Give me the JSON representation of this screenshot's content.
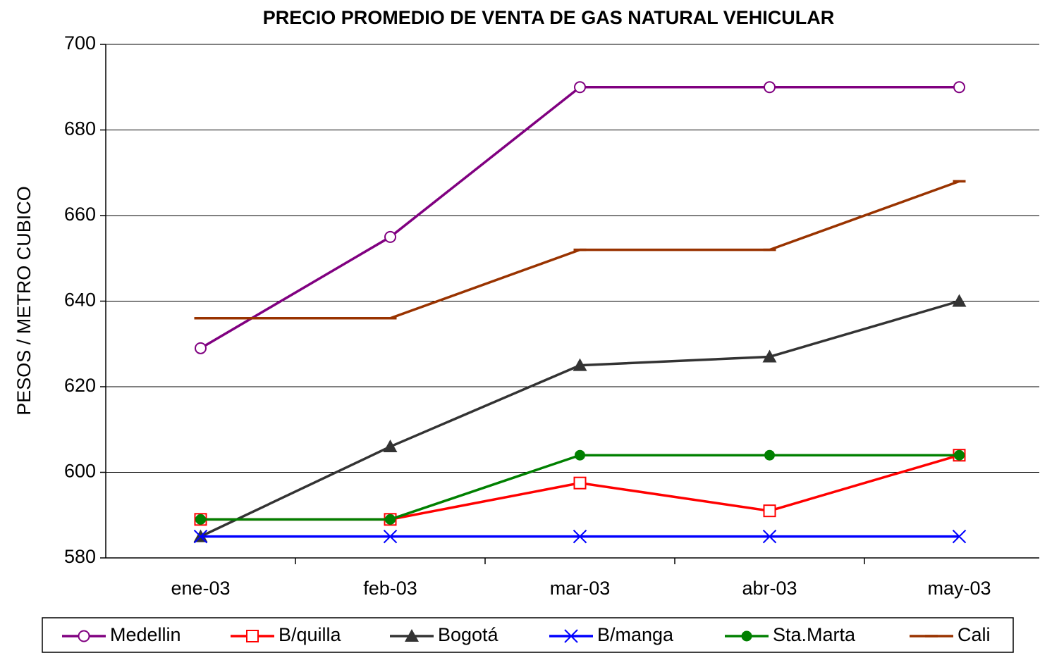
{
  "chart_data": {
    "type": "line",
    "title": "PRECIO PROMEDIO DE VENTA DE GAS NATURAL VEHICULAR",
    "y_label": "PESOS / METRO CUBICO",
    "categories": [
      "ene-03",
      "feb-03",
      "mar-03",
      "abr-03",
      "may-03"
    ],
    "ylim": [
      580,
      700
    ],
    "yticks": [
      580,
      600,
      620,
      640,
      660,
      680,
      700
    ],
    "grid": true,
    "series": [
      {
        "name": "Medellin",
        "color": "#800080",
        "marker": "open-circle",
        "values": [
          629,
          655,
          690,
          690,
          690
        ]
      },
      {
        "name": "B/quilla",
        "color": "#ff0000",
        "marker": "open-square",
        "values": [
          589,
          589,
          597.5,
          591,
          604
        ]
      },
      {
        "name": "Bogotá",
        "color": "#333333",
        "marker": "triangle",
        "values": [
          585,
          606,
          625,
          627,
          640
        ]
      },
      {
        "name": "B/manga",
        "color": "#0000ff",
        "marker": "x",
        "values": [
          585,
          585,
          585,
          585,
          585
        ]
      },
      {
        "name": "Sta.Marta",
        "color": "#008000",
        "marker": "filled-circle",
        "values": [
          589,
          589,
          604,
          604,
          604
        ]
      },
      {
        "name": "Cali",
        "color": "#993300",
        "marker": "dash",
        "values": [
          636,
          636,
          652,
          652,
          668
        ]
      }
    ]
  }
}
